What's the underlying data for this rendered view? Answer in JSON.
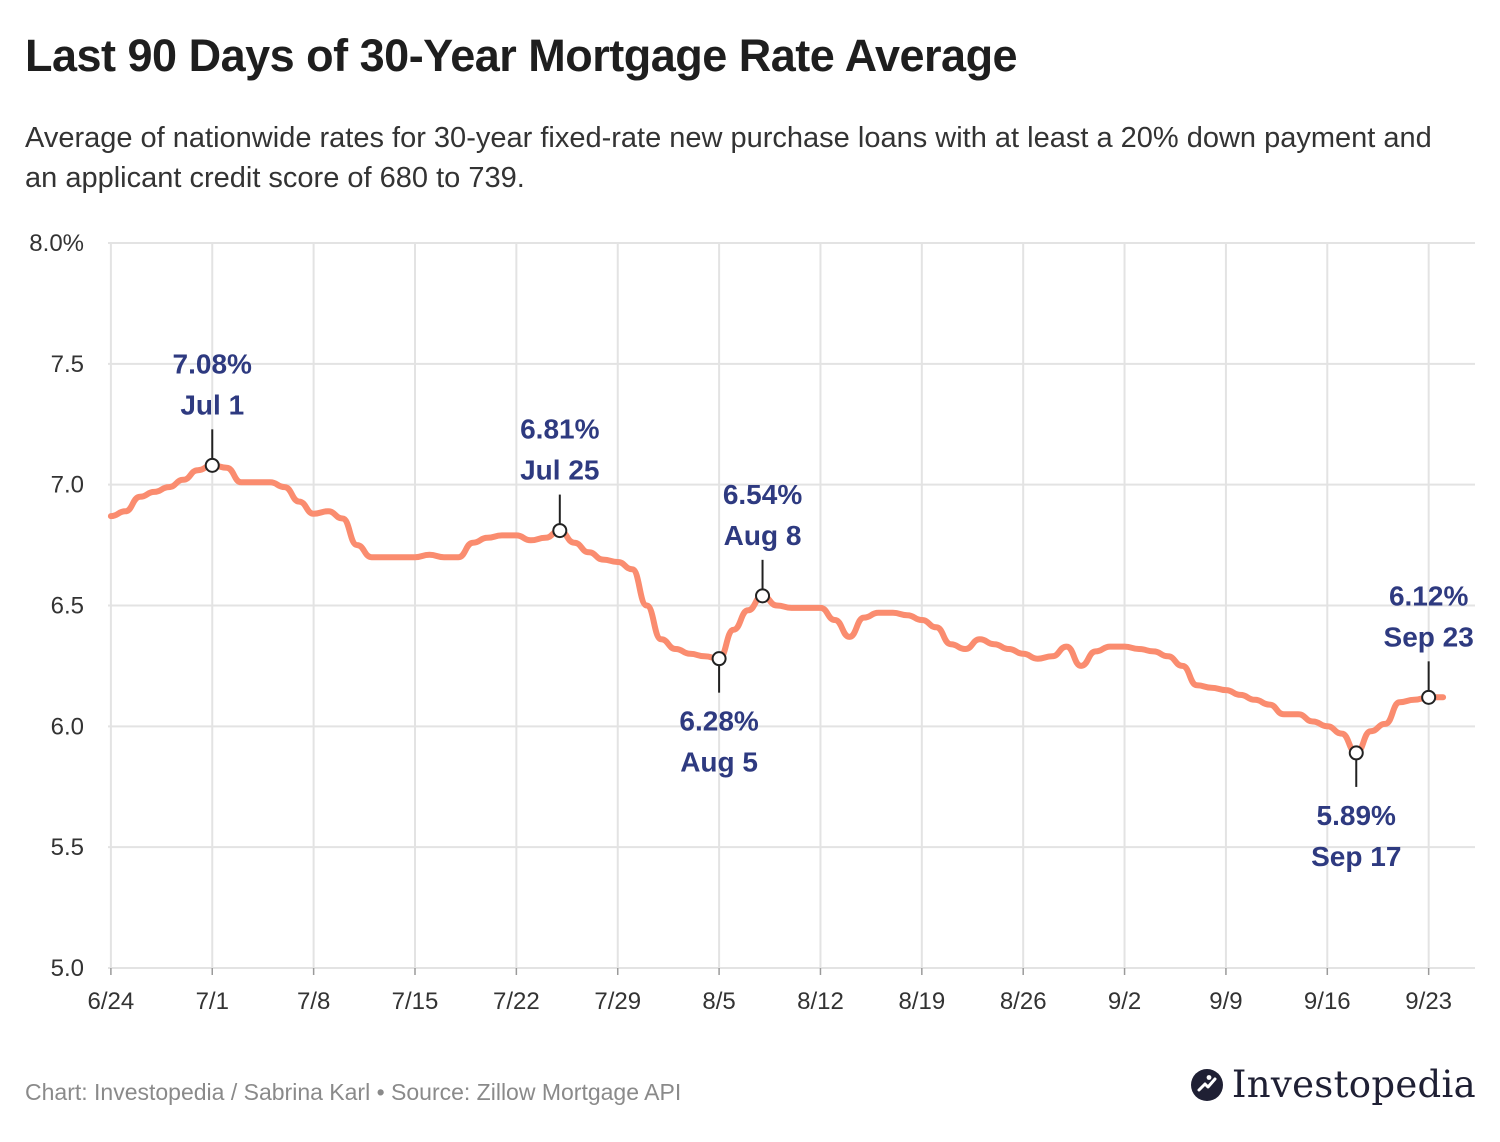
{
  "title": "Last 90 Days of 30-Year Mortgage Rate Average",
  "subtitle": "Average of nationwide rates for 30-year fixed-rate new purchase loans with at least a 20% down payment and an applicant credit score of 680 to 739.",
  "footer": {
    "credit": "Chart: Investopedia / Sabrina Karl • Source: Zillow Mortgage API",
    "logo_text": "Investopedia"
  },
  "colors": {
    "line": "#fa8c6f",
    "annotation": "#2e3a80",
    "grid": "#e3e3e3",
    "axis_text": "#333333"
  },
  "chart_data": {
    "type": "line",
    "title": "Last 90 Days of 30-Year Mortgage Rate Average",
    "xlabel": "",
    "ylabel": "",
    "ylim": [
      5.0,
      8.0
    ],
    "yticks": [
      5.0,
      5.5,
      6.0,
      6.5,
      7.0,
      7.5,
      8.0
    ],
    "ytick_labels": [
      "5.0",
      "5.5",
      "6.0",
      "6.5",
      "7.0",
      "7.5",
      "8.0%"
    ],
    "xlim_days": [
      -0.2,
      94.2
    ],
    "xticks": [
      {
        "day": 0,
        "label": "6/24"
      },
      {
        "day": 7,
        "label": "7/1"
      },
      {
        "day": 14,
        "label": "7/8"
      },
      {
        "day": 21,
        "label": "7/15"
      },
      {
        "day": 28,
        "label": "7/22"
      },
      {
        "day": 35,
        "label": "7/29"
      },
      {
        "day": 42,
        "label": "8/5"
      },
      {
        "day": 49,
        "label": "8/12"
      },
      {
        "day": 56,
        "label": "8/19"
      },
      {
        "day": 63,
        "label": "8/26"
      },
      {
        "day": 70,
        "label": "9/2"
      },
      {
        "day": 77,
        "label": "9/9"
      },
      {
        "day": 84,
        "label": "9/16"
      },
      {
        "day": 91,
        "label": "9/23"
      }
    ],
    "grid": true,
    "series": [
      {
        "name": "30-Year Mortgage Rate Average",
        "x_start_label": "6/24",
        "x_unit": "days",
        "points": [
          [
            0,
            6.87
          ],
          [
            1,
            6.89
          ],
          [
            2,
            6.95
          ],
          [
            3,
            6.97
          ],
          [
            4,
            6.99
          ],
          [
            5,
            7.02
          ],
          [
            6,
            7.06
          ],
          [
            7,
            7.08
          ],
          [
            8,
            7.07
          ],
          [
            9,
            7.01
          ],
          [
            10,
            7.01
          ],
          [
            11,
            7.01
          ],
          [
            12,
            6.99
          ],
          [
            13,
            6.93
          ],
          [
            14,
            6.88
          ],
          [
            15,
            6.89
          ],
          [
            16,
            6.86
          ],
          [
            17,
            6.75
          ],
          [
            18,
            6.7
          ],
          [
            19,
            6.7
          ],
          [
            20,
            6.7
          ],
          [
            21,
            6.7
          ],
          [
            22,
            6.71
          ],
          [
            23,
            6.7
          ],
          [
            24,
            6.7
          ],
          [
            25,
            6.76
          ],
          [
            26,
            6.78
          ],
          [
            27,
            6.79
          ],
          [
            28,
            6.79
          ],
          [
            29,
            6.77
          ],
          [
            30,
            6.78
          ],
          [
            31,
            6.81
          ],
          [
            32,
            6.76
          ],
          [
            33,
            6.72
          ],
          [
            34,
            6.69
          ],
          [
            35,
            6.68
          ],
          [
            36,
            6.65
          ],
          [
            37,
            6.5
          ],
          [
            38,
            6.36
          ],
          [
            39,
            6.32
          ],
          [
            40,
            6.3
          ],
          [
            41,
            6.29
          ],
          [
            42,
            6.28
          ],
          [
            43,
            6.4
          ],
          [
            44,
            6.48
          ],
          [
            45,
            6.54
          ],
          [
            46,
            6.5
          ],
          [
            47,
            6.49
          ],
          [
            48,
            6.49
          ],
          [
            49,
            6.49
          ],
          [
            50,
            6.44
          ],
          [
            51,
            6.37
          ],
          [
            52,
            6.45
          ],
          [
            53,
            6.47
          ],
          [
            54,
            6.47
          ],
          [
            55,
            6.46
          ],
          [
            56,
            6.44
          ],
          [
            57,
            6.41
          ],
          [
            58,
            6.34
          ],
          [
            59,
            6.32
          ],
          [
            60,
            6.36
          ],
          [
            61,
            6.34
          ],
          [
            62,
            6.32
          ],
          [
            63,
            6.3
          ],
          [
            64,
            6.28
          ],
          [
            65,
            6.29
          ],
          [
            66,
            6.33
          ],
          [
            67,
            6.25
          ],
          [
            68,
            6.31
          ],
          [
            69,
            6.33
          ],
          [
            70,
            6.33
          ],
          [
            71,
            6.32
          ],
          [
            72,
            6.31
          ],
          [
            73,
            6.29
          ],
          [
            74,
            6.25
          ],
          [
            75,
            6.17
          ],
          [
            76,
            6.16
          ],
          [
            77,
            6.15
          ],
          [
            78,
            6.13
          ],
          [
            79,
            6.11
          ],
          [
            80,
            6.09
          ],
          [
            81,
            6.05
          ],
          [
            82,
            6.05
          ],
          [
            83,
            6.02
          ],
          [
            84,
            6.0
          ],
          [
            85,
            5.97
          ],
          [
            86,
            5.89
          ],
          [
            87,
            5.98
          ],
          [
            88,
            6.01
          ],
          [
            89,
            6.1
          ],
          [
            90,
            6.11
          ],
          [
            91,
            6.12
          ],
          [
            92,
            6.12
          ]
        ]
      }
    ],
    "annotations": [
      {
        "day": 7,
        "value": 7.08,
        "value_label": "7.08%",
        "date_label": "Jul 1",
        "position": "above"
      },
      {
        "day": 31,
        "value": 6.81,
        "value_label": "6.81%",
        "date_label": "Jul 25",
        "position": "above"
      },
      {
        "day": 42,
        "value": 6.28,
        "value_label": "6.28%",
        "date_label": "Aug 5",
        "position": "below"
      },
      {
        "day": 45,
        "value": 6.54,
        "value_label": "6.54%",
        "date_label": "Aug 8",
        "position": "above"
      },
      {
        "day": 86,
        "value": 5.89,
        "value_label": "5.89%",
        "date_label": "Sep 17",
        "position": "below"
      },
      {
        "day": 91,
        "value": 6.12,
        "value_label": "6.12%",
        "date_label": "Sep 23",
        "position": "above"
      }
    ]
  }
}
